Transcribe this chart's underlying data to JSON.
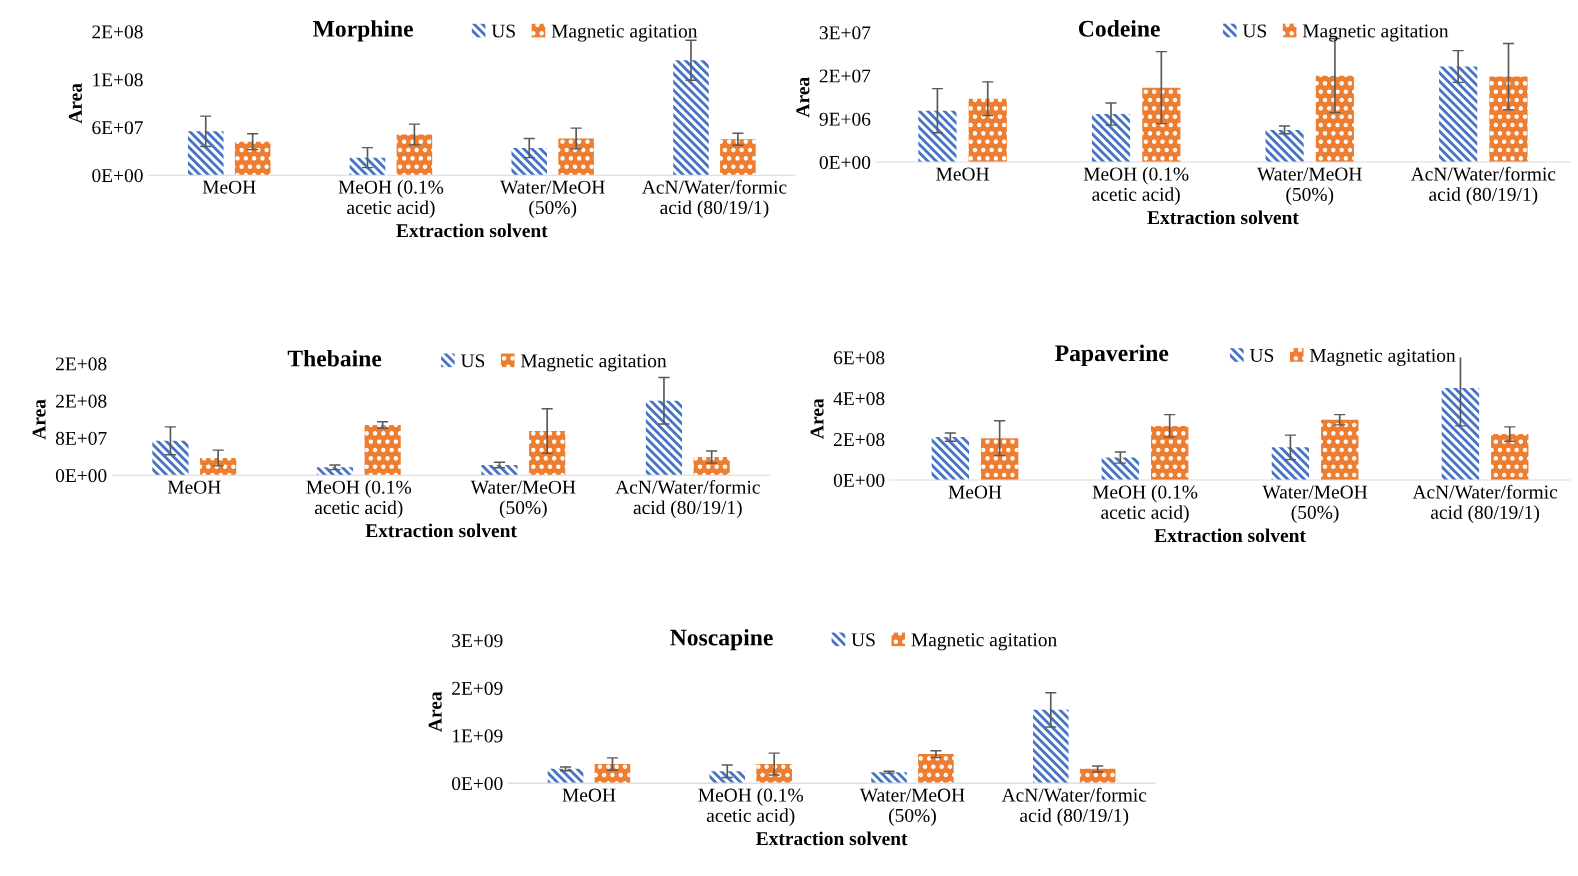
{
  "chart_data": [
    {
      "type": "bar",
      "title": "Morphine",
      "xlabel": "Extraction solvent",
      "ylabel": "Area",
      "legend": "top",
      "grid": false,
      "categories": [
        "MeOH",
        "MeOH (0.1%\nacetic acid)",
        "Water/MeOH\n(50%)",
        "AcN/Water/formic\nacid (80/19/1)"
      ],
      "ylim": [
        0,
        180000000
      ],
      "yticks": [
        {
          "value": 0,
          "label": "0E+00"
        },
        {
          "value": 60000000,
          "label": "6E+07"
        },
        {
          "value": 120000000,
          "label": "1E+08"
        },
        {
          "value": 180000000,
          "label": "2E+08"
        }
      ],
      "series": [
        {
          "name": "US",
          "color": "#4472c4",
          "values": [
            55000000,
            22000000,
            34000000,
            144000000
          ],
          "errors": [
            19000000,
            12500000,
            12000000,
            25000000
          ]
        },
        {
          "name": "Magnetic agitation",
          "color": "#ed7d31",
          "values": [
            42000000,
            51000000,
            46000000,
            45000000
          ],
          "errors": [
            10000000,
            13000000,
            13000000,
            7500000
          ]
        }
      ]
    },
    {
      "type": "bar",
      "title": "Codeine",
      "xlabel": "Extraction solvent",
      "ylabel": "Area",
      "legend": "top",
      "grid": false,
      "categories": [
        "MeOH",
        "MeOH (0.1%\nacetic acid)",
        "Water/MeOH\n(50%)",
        "AcN/Water/formic\nacid (80/19/1)"
      ],
      "ylim": [
        0,
        27000000
      ],
      "yticks": [
        {
          "value": 0,
          "label": "0E+00"
        },
        {
          "value": 9000000,
          "label": "9E+06"
        },
        {
          "value": 18000000,
          "label": "2E+07"
        },
        {
          "value": 27000000,
          "label": "3E+07"
        }
      ],
      "series": [
        {
          "name": "US",
          "color": "#4472c4",
          "values": [
            10700000,
            10000000,
            6700000,
            19900000
          ],
          "errors": [
            4600000,
            2300000,
            800000,
            3300000
          ]
        },
        {
          "name": "Magnetic agitation",
          "color": "#ed7d31",
          "values": [
            13200000,
            15500000,
            18000000,
            17800000
          ],
          "errors": [
            3500000,
            7500000,
            7700000,
            6900000
          ]
        }
      ]
    },
    {
      "type": "bar",
      "title": "Thebaine",
      "xlabel": "Extraction solvent",
      "ylabel": "Area",
      "legend": "top",
      "grid": false,
      "categories": [
        "MeOH",
        "MeOH (0.1%\nacetic acid)",
        "Water/MeOH\n(50%)",
        "AcN/Water/formic\nacid (80/19/1)"
      ],
      "ylim": [
        0,
        240000000
      ],
      "yticks": [
        {
          "value": 0,
          "label": "0E+00"
        },
        {
          "value": 80000000,
          "label": "8E+07"
        },
        {
          "value": 160000000,
          "label": "2E+08"
        },
        {
          "value": 240000000,
          "label": "2E+08"
        }
      ],
      "series": [
        {
          "name": "US",
          "color": "#4472c4",
          "values": [
            74000000,
            17000000,
            22000000,
            160000000
          ],
          "errors": [
            30000000,
            5000000,
            6000000,
            50000000
          ]
        },
        {
          "name": "Magnetic agitation",
          "color": "#ed7d31",
          "values": [
            37000000,
            108000000,
            95000000,
            39000000
          ],
          "errors": [
            17000000,
            7000000,
            48000000,
            13000000
          ]
        }
      ]
    },
    {
      "type": "bar",
      "title": "Papaverine",
      "xlabel": "Extraction solvent",
      "ylabel": "Area",
      "legend": "top",
      "grid": false,
      "categories": [
        "MeOH",
        "MeOH (0.1%\nacetic acid)",
        "Water/MeOH\n(50%)",
        "AcN/Water/formic\nacid (80/19/1)"
      ],
      "ylim": [
        0,
        600000000
      ],
      "yticks": [
        {
          "value": 0,
          "label": "0E+00"
        },
        {
          "value": 200000000,
          "label": "2E+08"
        },
        {
          "value": 400000000,
          "label": "4E+08"
        },
        {
          "value": 600000000,
          "label": "6E+08"
        }
      ],
      "series": [
        {
          "name": "US",
          "color": "#4472c4",
          "values": [
            210000000,
            110000000,
            160000000,
            450000000
          ],
          "errors": [
            20000000,
            27000000,
            60000000,
            185000000
          ]
        },
        {
          "name": "Magnetic agitation",
          "color": "#ed7d31",
          "values": [
            205000000,
            265000000,
            295000000,
            225000000
          ],
          "errors": [
            85000000,
            55000000,
            25000000,
            35000000
          ]
        }
      ]
    },
    {
      "type": "bar",
      "title": "Noscapine",
      "xlabel": "Extraction solvent",
      "ylabel": "Area",
      "legend": "top",
      "grid": false,
      "categories": [
        "MeOH",
        "MeOH (0.1%\nacetic acid)",
        "Water/MeOH\n(50%)",
        "AcN/Water/formic\nacid (80/19/1)"
      ],
      "ylim": [
        0,
        3000000000
      ],
      "yticks": [
        {
          "value": 0,
          "label": "0E+00"
        },
        {
          "value": 1000000000,
          "label": "1E+09"
        },
        {
          "value": 2000000000,
          "label": "2E+09"
        },
        {
          "value": 3000000000,
          "label": "3E+09"
        }
      ],
      "series": [
        {
          "name": "US",
          "color": "#4472c4",
          "values": [
            300000000,
            250000000,
            230000000,
            1540000000
          ],
          "errors": [
            40000000,
            130000000,
            20000000,
            360000000
          ]
        },
        {
          "name": "Magnetic agitation",
          "color": "#ed7d31",
          "values": [
            400000000,
            400000000,
            610000000,
            300000000
          ],
          "errors": [
            130000000,
            230000000,
            70000000,
            60000000
          ]
        }
      ]
    }
  ]
}
